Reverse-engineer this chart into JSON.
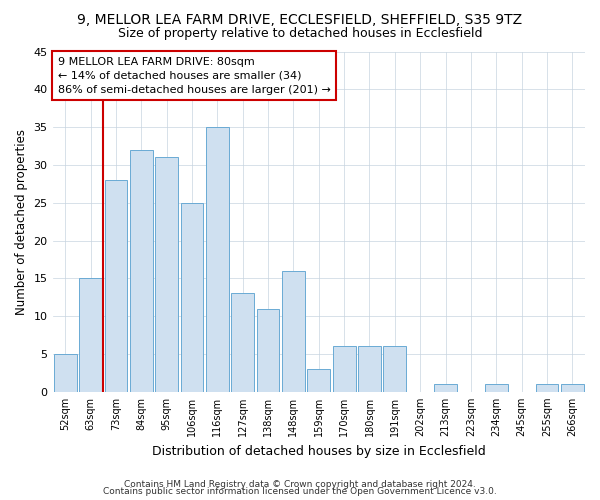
{
  "title_line1": "9, MELLOR LEA FARM DRIVE, ECCLESFIELD, SHEFFIELD, S35 9TZ",
  "title_line2": "Size of property relative to detached houses in Ecclesfield",
  "xlabel": "Distribution of detached houses by size in Ecclesfield",
  "ylabel": "Number of detached properties",
  "bar_labels": [
    "52sqm",
    "63sqm",
    "73sqm",
    "84sqm",
    "95sqm",
    "106sqm",
    "116sqm",
    "127sqm",
    "138sqm",
    "148sqm",
    "159sqm",
    "170sqm",
    "180sqm",
    "191sqm",
    "202sqm",
    "213sqm",
    "223sqm",
    "234sqm",
    "245sqm",
    "255sqm",
    "266sqm"
  ],
  "bar_values": [
    5,
    15,
    28,
    32,
    31,
    25,
    35,
    13,
    11,
    16,
    3,
    6,
    6,
    6,
    0,
    1,
    0,
    1,
    0,
    1,
    1
  ],
  "bar_color": "#cfe0f0",
  "bar_edge_color": "#6aaad4",
  "vline_x": 1.5,
  "vline_color": "#cc0000",
  "ylim": [
    0,
    45
  ],
  "yticks": [
    0,
    5,
    10,
    15,
    20,
    25,
    30,
    35,
    40,
    45
  ],
  "annotation_line1": "9 MELLOR LEA FARM DRIVE: 80sqm",
  "annotation_line2": "← 14% of detached houses are smaller (34)",
  "annotation_line3": "86% of semi-detached houses are larger (201) →",
  "footer_line1": "Contains HM Land Registry data © Crown copyright and database right 2024.",
  "footer_line2": "Contains public sector information licensed under the Open Government Licence v3.0.",
  "bg_color": "#ffffff",
  "plot_bg_color": "#ffffff",
  "grid_color": "#c8d4e0"
}
